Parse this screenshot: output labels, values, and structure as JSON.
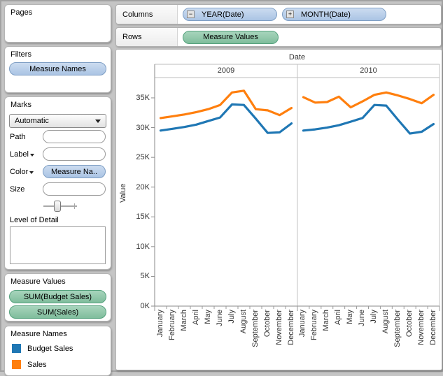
{
  "shelves": {
    "columns_label": "Columns",
    "rows_label": "Rows",
    "columns_pills": [
      {
        "text": "YEAR(Date)",
        "expander": "−"
      },
      {
        "text": "MONTH(Date)",
        "expander": "+"
      }
    ],
    "rows_pills": [
      {
        "text": "Measure Values"
      }
    ]
  },
  "cards": {
    "pages": {
      "title": "Pages"
    },
    "filters": {
      "title": "Filters",
      "pill": "Measure Names"
    },
    "marks": {
      "title": "Marks",
      "mark_type": "Automatic",
      "rows": [
        {
          "label": "Path",
          "pill": ""
        },
        {
          "label": "Label",
          "pill": ""
        },
        {
          "label": "Color",
          "pill": "Measure Na.."
        },
        {
          "label": "Size",
          "pill": ""
        }
      ],
      "lod_label": "Level of Detail"
    },
    "measure_values": {
      "title": "Measure Values",
      "pills": [
        "SUM(Budget Sales)",
        "SUM(Sales)"
      ]
    },
    "legend": {
      "title": "Measure Names",
      "items": [
        {
          "label": "Budget Sales",
          "color": "#1f77b4"
        },
        {
          "label": "Sales",
          "color": "#ff7f0e"
        }
      ]
    }
  },
  "chart_data": {
    "type": "line",
    "title": "Date",
    "ylabel": "Value",
    "ylim": [
      0,
      38
    ],
    "grid": false,
    "legend_position": "separate-card-bottom-left",
    "yticks": [
      {
        "value": 0,
        "label": "0K"
      },
      {
        "value": 5,
        "label": "5K"
      },
      {
        "value": 10,
        "label": "10K"
      },
      {
        "value": 15,
        "label": "15K"
      },
      {
        "value": 20,
        "label": "20K"
      },
      {
        "value": 25,
        "label": "25K"
      },
      {
        "value": 30,
        "label": "30K"
      },
      {
        "value": 35,
        "label": "35K"
      }
    ],
    "panels": [
      "2009",
      "2010"
    ],
    "categories": [
      "January",
      "February",
      "March",
      "April",
      "May",
      "June",
      "July",
      "August",
      "September",
      "October",
      "November",
      "December"
    ],
    "units": "thousands",
    "series": [
      {
        "name": "Budget Sales",
        "color": "#1f77b4",
        "values_by_panel": {
          "2009": [
            29.5,
            29.8,
            30.1,
            30.5,
            31.1,
            31.7,
            33.9,
            33.8,
            31.5,
            29.1,
            29.2,
            30.7
          ],
          "2010": [
            29.5,
            29.7,
            30.0,
            30.4,
            31.0,
            31.6,
            33.8,
            33.7,
            31.3,
            29.0,
            29.3,
            30.6
          ]
        }
      },
      {
        "name": "Sales",
        "color": "#ff7f0e",
        "values_by_panel": {
          "2009": [
            31.6,
            31.9,
            32.2,
            32.6,
            33.1,
            33.8,
            35.9,
            36.2,
            33.1,
            32.9,
            32.1,
            33.3
          ],
          "2010": [
            35.1,
            34.2,
            34.3,
            35.2,
            33.4,
            34.4,
            35.5,
            35.9,
            35.4,
            34.8,
            34.1,
            35.5
          ]
        }
      }
    ]
  }
}
